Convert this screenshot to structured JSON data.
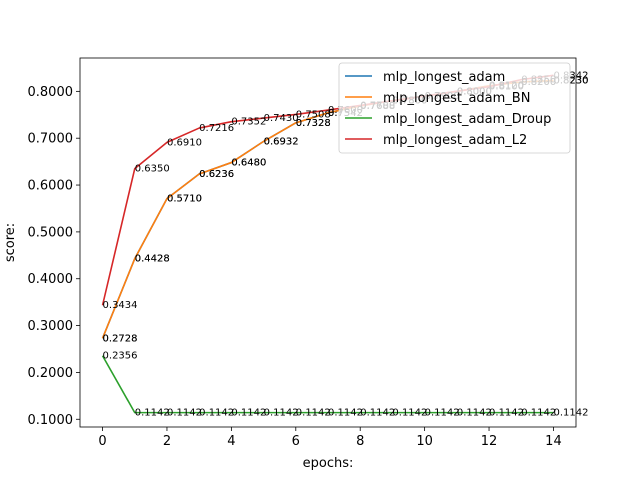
{
  "chart_data": {
    "type": "line",
    "title": "",
    "xlabel": "epochs:",
    "ylabel": "score:",
    "xlim": [
      -0.7,
      14.7
    ],
    "ylim": [
      0.0835,
      0.8712
    ],
    "x_ticks": [
      0,
      2,
      4,
      6,
      8,
      10,
      12,
      14
    ],
    "x_tick_labels": [
      "0",
      "2",
      "4",
      "6",
      "8",
      "10",
      "12",
      "14"
    ],
    "y_ticks": [
      0.1,
      0.2,
      0.3,
      0.4,
      0.5,
      0.6,
      0.7,
      0.8
    ],
    "y_tick_labels": [
      "0.1000",
      "0.2000",
      "0.3000",
      "0.4000",
      "0.5000",
      "0.6000",
      "0.7000",
      "0.8000"
    ],
    "grid": false,
    "legend_position": "top-right",
    "x": [
      0,
      1,
      2,
      3,
      4,
      5,
      6,
      7,
      8,
      9,
      10,
      11,
      12,
      13,
      14
    ],
    "series": [
      {
        "name": "mlp_longest_adam",
        "color": "#1f77b4",
        "values": [
          0.2728,
          0.4428,
          0.571,
          0.6236,
          0.648,
          0.6932,
          0.7328,
          0.7542,
          0.7688,
          0.78,
          0.79,
          0.8,
          0.812,
          0.82,
          0.823
        ],
        "labels": [
          "0.2728",
          "0.4428",
          "0.5710",
          "0.6236",
          "0.6480",
          "0.6932",
          "0.7328",
          "0.7542",
          "0.7688",
          "0.7800",
          "0.7900",
          "0.8000",
          "0.8120",
          "0.8200",
          "0.8230"
        ]
      },
      {
        "name": "mlp_longest_adam_BN",
        "color": "#ff7f0e",
        "values": [
          0.2728,
          0.4428,
          0.571,
          0.6236,
          0.648,
          0.6932,
          0.7328,
          0.7542,
          0.7688,
          0.78,
          0.79,
          0.8,
          0.812,
          0.82,
          0.823
        ],
        "labels": [
          "0.2728",
          "0.4428",
          "0.5710",
          "0.6236",
          "0.6480",
          "0.6932",
          "0.7328",
          "0.7542",
          "0.7688",
          "0.7800",
          "0.7900",
          "0.8000",
          "0.8120",
          "0.8200",
          "0.8230"
        ]
      },
      {
        "name": "mlp_longest_adam_Droup",
        "color": "#2ca02c",
        "values": [
          0.2356,
          0.1142,
          0.1142,
          0.1142,
          0.1142,
          0.1142,
          0.1142,
          0.1142,
          0.1142,
          0.1142,
          0.1142,
          0.1142,
          0.1142,
          0.1142,
          0.1142
        ],
        "labels": [
          "0.2356",
          "0.1142",
          "0.1142",
          "0.1142",
          "0.1142",
          "0.1142",
          "0.1142",
          "0.1142",
          "0.1142",
          "0.1142",
          "0.1142",
          "0.1142",
          "0.1142",
          "0.1142",
          "0.1142"
        ]
      },
      {
        "name": "mlp_longest_adam_L2",
        "color": "#d62728",
        "values": [
          0.3434,
          0.635,
          0.691,
          0.7216,
          0.7352,
          0.743,
          0.7508,
          0.76,
          0.77,
          0.78,
          0.79,
          0.8,
          0.81,
          0.825,
          0.8342
        ],
        "labels": [
          "0.3434",
          "0.6350",
          "0.6910",
          "0.7216",
          "0.7352",
          "0.7430",
          "0.7508",
          "0.7600",
          "0.7700",
          "0.7800",
          "0.7900",
          "0.8000",
          "0.8100",
          "0.8250",
          "0.8342"
        ]
      }
    ]
  }
}
